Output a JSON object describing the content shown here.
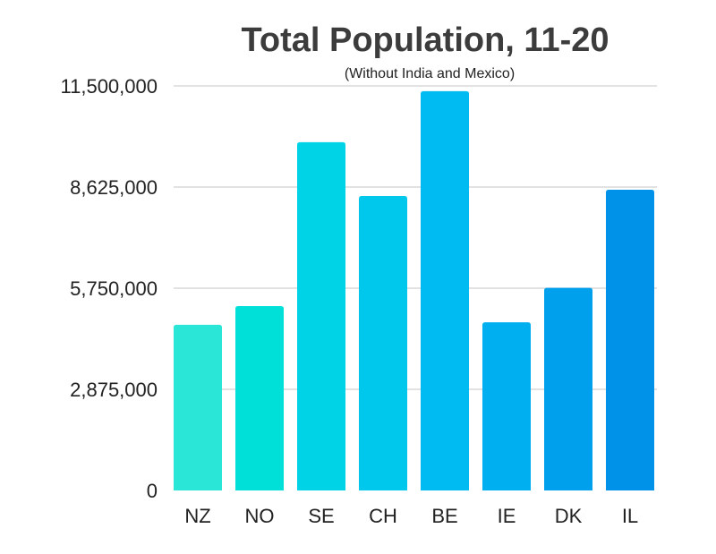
{
  "chart_data": {
    "type": "bar",
    "title": "Total Population, 11-20",
    "subtitle": "(Without India and Mexico)",
    "xlabel": "",
    "ylabel": "",
    "categories": [
      "NZ",
      "NO",
      "SE",
      "CH",
      "BE",
      "IE",
      "DK",
      "IL"
    ],
    "values": [
      4710000,
      5240000,
      9900000,
      8370000,
      11350000,
      4780000,
      5760000,
      8550000
    ],
    "colors": [
      "#29E6D6",
      "#00DFD8",
      "#00D3E6",
      "#00C8EC",
      "#00BBF2",
      "#00AFF0",
      "#00A0EC",
      "#0092E8"
    ],
    "ylim": [
      0,
      11500000
    ],
    "yticks": [
      0,
      2875000,
      5750000,
      8625000,
      11500000
    ],
    "ytick_labels": [
      "0",
      "2,875,000",
      "5,750,000",
      "8,625,000",
      "11,500,000"
    ],
    "grid": true,
    "legend": "none"
  }
}
